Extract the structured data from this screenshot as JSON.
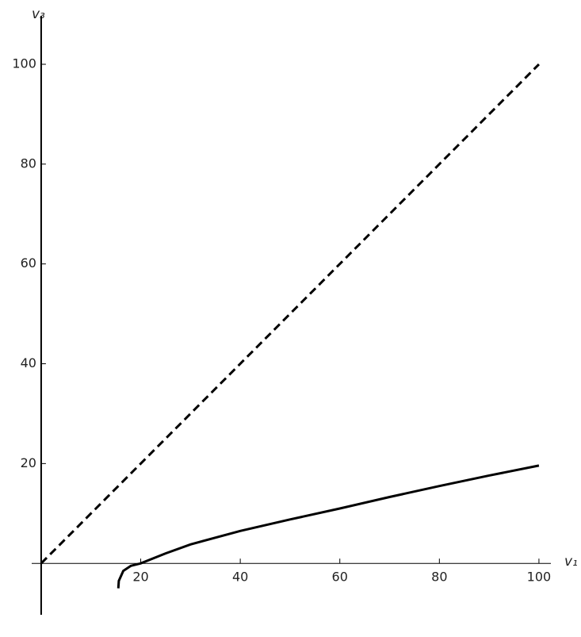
{
  "chart_data": {
    "type": "line",
    "xlabel": "v₁",
    "ylabel": "v₃",
    "xlim": [
      -1.9,
      102.4
    ],
    "ylim": [
      -10.3,
      109.7
    ],
    "xticks": [
      20,
      40,
      60,
      80,
      100
    ],
    "yticks": [
      20,
      40,
      60,
      80,
      100
    ],
    "series": [
      {
        "color": "#000000",
        "dashed": true,
        "x": [
          0,
          100
        ],
        "values": [
          0,
          100
        ]
      },
      {
        "color": "#000000",
        "dashed": false,
        "x": [
          15.5,
          15.6,
          16.5,
          18,
          20,
          25,
          30,
          40,
          50,
          60,
          70,
          80,
          90,
          100
        ],
        "values": [
          -5,
          -3.5,
          -1.5,
          -0.5,
          0,
          2,
          3.8,
          6.5,
          8.8,
          11,
          13.3,
          15.5,
          17.6,
          19.6
        ]
      }
    ]
  }
}
